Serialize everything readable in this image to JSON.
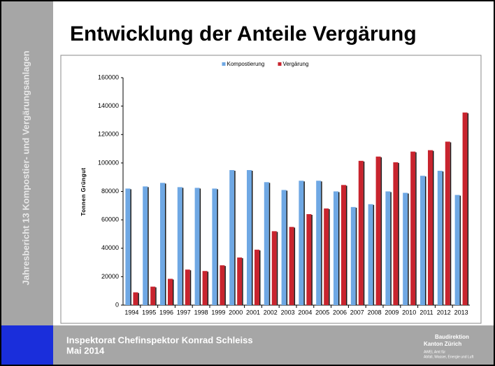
{
  "slide": {
    "sidebar": "Jahresbericht 13 Kompostier- und Vergärungsanlagen",
    "footer": [
      "Inspektorat Chefinspektor Konrad Schleiss",
      "Mai 2014"
    ],
    "logo": [
      "Baudirektion",
      "Kanton Zürich",
      "AWEL Amt für",
      "Abfall, Wasser, Energie und Luft"
    ]
  },
  "chart_data": {
    "type": "bar",
    "title": "Entwicklung der Anteile Vergärung",
    "y_label": "Tonnen Grüngut",
    "categories": [
      "1994",
      "1995",
      "1996",
      "1997",
      "1998",
      "1999",
      "2000",
      "2001",
      "2002",
      "2003",
      "2004",
      "2005",
      "2006",
      "2007",
      "2008",
      "2009",
      "2010",
      "2011",
      "2012",
      "2013"
    ],
    "series": [
      {
        "name": "Kompostierung",
        "color": "#6fa8e4",
        "values": [
          82000,
          83500,
          86000,
          83000,
          82500,
          82000,
          95000,
          95000,
          86500,
          81000,
          87500,
          87500,
          80000,
          69000,
          71000,
          80000,
          79000,
          91000,
          94500,
          77500
        ]
      },
      {
        "name": "Vergärung",
        "color": "#c8242e",
        "values": [
          9000,
          13000,
          18500,
          25000,
          24000,
          28000,
          33500,
          39000,
          52000,
          55000,
          64000,
          68000,
          84500,
          101500,
          104500,
          100500,
          108000,
          109000,
          115000,
          135500
        ]
      }
    ],
    "ylim": [
      0,
      160000
    ],
    "yticks": [
      0,
      20000,
      40000,
      60000,
      80000,
      100000,
      120000,
      140000,
      160000
    ],
    "legend": "top",
    "grid": false
  }
}
